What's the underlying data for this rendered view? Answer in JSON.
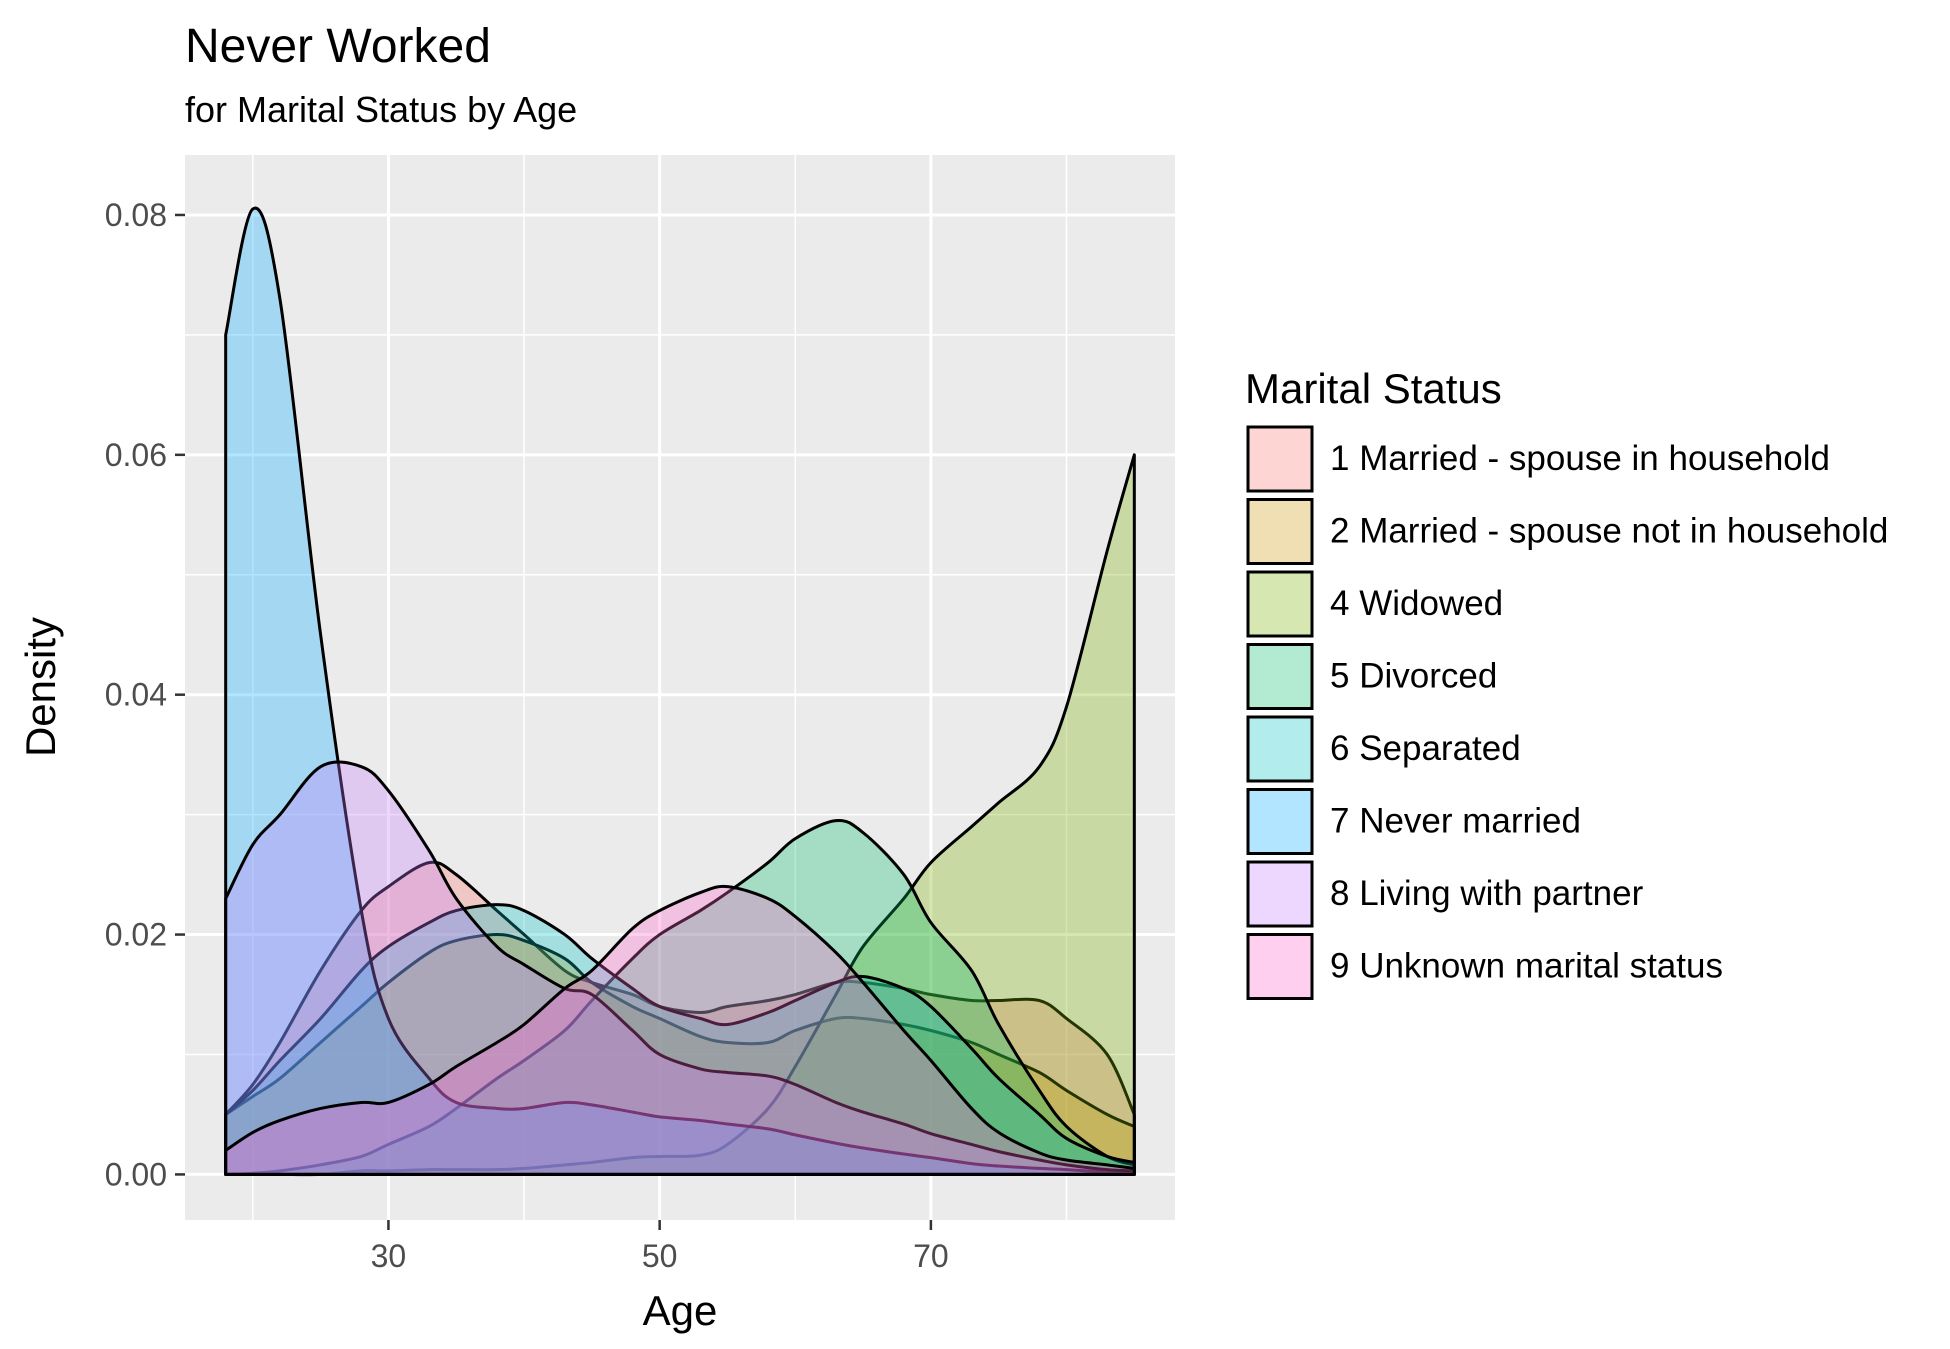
{
  "chart_data": {
    "type": "area",
    "title": "Never Worked",
    "subtitle": "for Marital Status by Age",
    "xlabel": "Age",
    "ylabel": "Density",
    "xlim": [
      15,
      88
    ],
    "ylim": [
      -0.0038,
      0.085
    ],
    "x_ticks": [
      30,
      50,
      70
    ],
    "y_ticks": [
      0.0,
      0.02,
      0.04,
      0.06,
      0.08
    ],
    "y_tick_labels": [
      "0.00",
      "0.02",
      "0.04",
      "0.06",
      "0.08"
    ],
    "grid": true,
    "legend": {
      "title": "Marital Status",
      "position": "right"
    },
    "x": [
      18,
      20,
      22,
      25,
      28,
      30,
      33,
      35,
      38,
      40,
      43,
      45,
      48,
      50,
      53,
      55,
      58,
      60,
      63,
      65,
      68,
      70,
      73,
      75,
      78,
      80,
      83,
      85
    ],
    "series": [
      {
        "name": "1 Married - spouse in household",
        "color": "#F8766D",
        "values": [
          0.005,
          0.0075,
          0.011,
          0.017,
          0.022,
          0.024,
          0.026,
          0.025,
          0.022,
          0.02,
          0.017,
          0.016,
          0.015,
          0.014,
          0.0135,
          0.014,
          0.0145,
          0.015,
          0.016,
          0.016,
          0.0155,
          0.015,
          0.0145,
          0.0145,
          0.0145,
          0.013,
          0.01,
          0.005
        ]
      },
      {
        "name": "2 Married - spouse not in household",
        "color": "#CD9600",
        "values": [
          0.005,
          0.0065,
          0.008,
          0.011,
          0.014,
          0.016,
          0.0185,
          0.0195,
          0.02,
          0.0195,
          0.018,
          0.016,
          0.014,
          0.013,
          0.0115,
          0.011,
          0.011,
          0.012,
          0.013,
          0.013,
          0.0125,
          0.012,
          0.011,
          0.01,
          0.0085,
          0.007,
          0.005,
          0.004
        ]
      },
      {
        "name": "4 Widowed",
        "color": "#7CAE00",
        "values": [
          0.0,
          0.0,
          0.0,
          0.0,
          0.0003,
          0.0003,
          0.0004,
          0.0004,
          0.0004,
          0.0005,
          0.0008,
          0.001,
          0.0014,
          0.0015,
          0.0016,
          0.0025,
          0.0055,
          0.009,
          0.015,
          0.019,
          0.023,
          0.026,
          0.029,
          0.031,
          0.034,
          0.039,
          0.052,
          0.06
        ]
      },
      {
        "name": "5 Divorced",
        "color": "#00BE67",
        "values": [
          0.0,
          0.0001,
          0.0003,
          0.0008,
          0.0015,
          0.0025,
          0.004,
          0.0055,
          0.008,
          0.0095,
          0.012,
          0.0145,
          0.018,
          0.02,
          0.022,
          0.0235,
          0.026,
          0.028,
          0.0295,
          0.0285,
          0.025,
          0.021,
          0.017,
          0.0125,
          0.007,
          0.004,
          0.0015,
          0.0008
        ]
      },
      {
        "name": "6 Separated",
        "color": "#00BFC4",
        "values": [
          0.005,
          0.007,
          0.0095,
          0.013,
          0.017,
          0.019,
          0.021,
          0.022,
          0.0225,
          0.022,
          0.02,
          0.018,
          0.0155,
          0.014,
          0.013,
          0.0125,
          0.0135,
          0.0145,
          0.016,
          0.0165,
          0.0155,
          0.014,
          0.0105,
          0.008,
          0.005,
          0.003,
          0.0015,
          0.001
        ]
      },
      {
        "name": "7 Never married",
        "color": "#00A9FF",
        "values": [
          0.07,
          0.0805,
          0.073,
          0.045,
          0.022,
          0.013,
          0.008,
          0.006,
          0.0055,
          0.0055,
          0.006,
          0.0058,
          0.0052,
          0.0048,
          0.0045,
          0.0042,
          0.0038,
          0.0033,
          0.0026,
          0.0022,
          0.0017,
          0.0014,
          0.0009,
          0.0007,
          0.0005,
          0.0004,
          0.0002,
          0.0001
        ]
      },
      {
        "name": "8 Living with partner",
        "color": "#C77CFF",
        "values": [
          0.023,
          0.0275,
          0.03,
          0.034,
          0.034,
          0.032,
          0.027,
          0.023,
          0.019,
          0.0175,
          0.0155,
          0.015,
          0.012,
          0.01,
          0.0088,
          0.0085,
          0.0082,
          0.0075,
          0.006,
          0.0052,
          0.0042,
          0.0034,
          0.0025,
          0.0019,
          0.0012,
          0.0008,
          0.0004,
          0.0003
        ]
      },
      {
        "name": "9 Unknown marital status",
        "color": "#FF61CC",
        "values": [
          0.002,
          0.0035,
          0.0045,
          0.0055,
          0.006,
          0.006,
          0.0075,
          0.009,
          0.011,
          0.0125,
          0.0155,
          0.017,
          0.0205,
          0.022,
          0.0235,
          0.024,
          0.023,
          0.0215,
          0.0185,
          0.016,
          0.012,
          0.0095,
          0.0055,
          0.0035,
          0.0018,
          0.0012,
          0.0008,
          0.0005
        ]
      }
    ]
  }
}
